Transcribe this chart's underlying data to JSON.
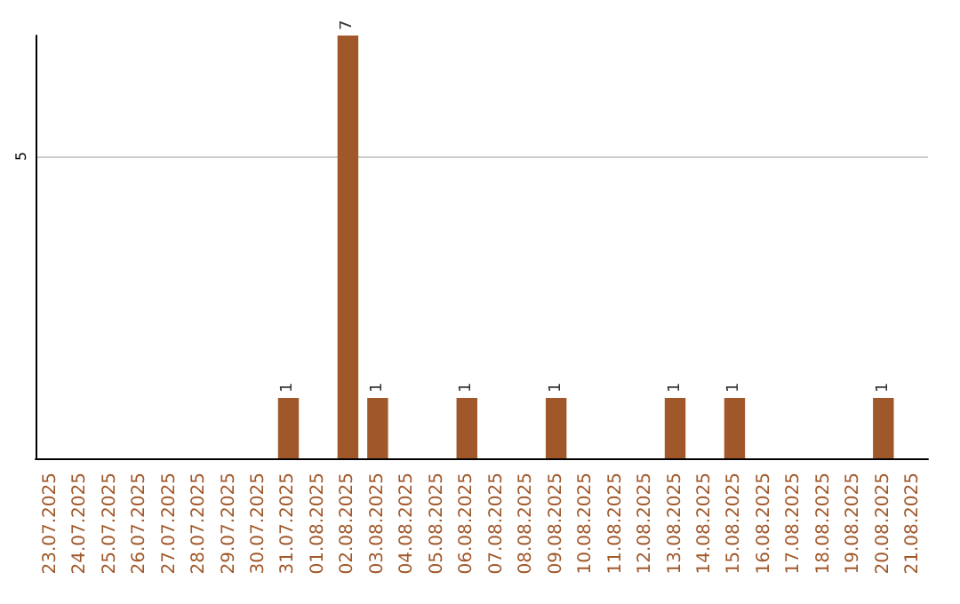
{
  "chart_data": {
    "type": "bar",
    "categories": [
      "23.07.2025",
      "24.07.2025",
      "25.07.2025",
      "26.07.2025",
      "27.07.2025",
      "28.07.2025",
      "29.07.2025",
      "30.07.2025",
      "31.07.2025",
      "01.08.2025",
      "02.08.2025",
      "03.08.2025",
      "04.08.2025",
      "05.08.2025",
      "06.08.2025",
      "07.08.2025",
      "08.08.2025",
      "09.08.2025",
      "10.08.2025",
      "11.08.2025",
      "12.08.2025",
      "13.08.2025",
      "14.08.2025",
      "15.08.2025",
      "16.08.2025",
      "17.08.2025",
      "18.08.2025",
      "19.08.2025",
      "20.08.2025",
      "21.08.2025"
    ],
    "values": [
      0,
      0,
      0,
      0,
      0,
      0,
      0,
      0,
      1,
      0,
      7,
      1,
      0,
      0,
      1,
      0,
      0,
      1,
      0,
      0,
      0,
      1,
      0,
      1,
      0,
      0,
      0,
      0,
      1,
      0
    ],
    "value_labels": [
      null,
      null,
      null,
      null,
      null,
      null,
      null,
      null,
      "1",
      null,
      "7",
      "1",
      null,
      null,
      "1",
      null,
      null,
      "1",
      null,
      null,
      null,
      "1",
      null,
      "1",
      null,
      null,
      null,
      null,
      "1",
      null
    ],
    "color": "#a0582a",
    "ylim": [
      0,
      7
    ],
    "yticks": [
      5
    ],
    "grid": "y"
  }
}
